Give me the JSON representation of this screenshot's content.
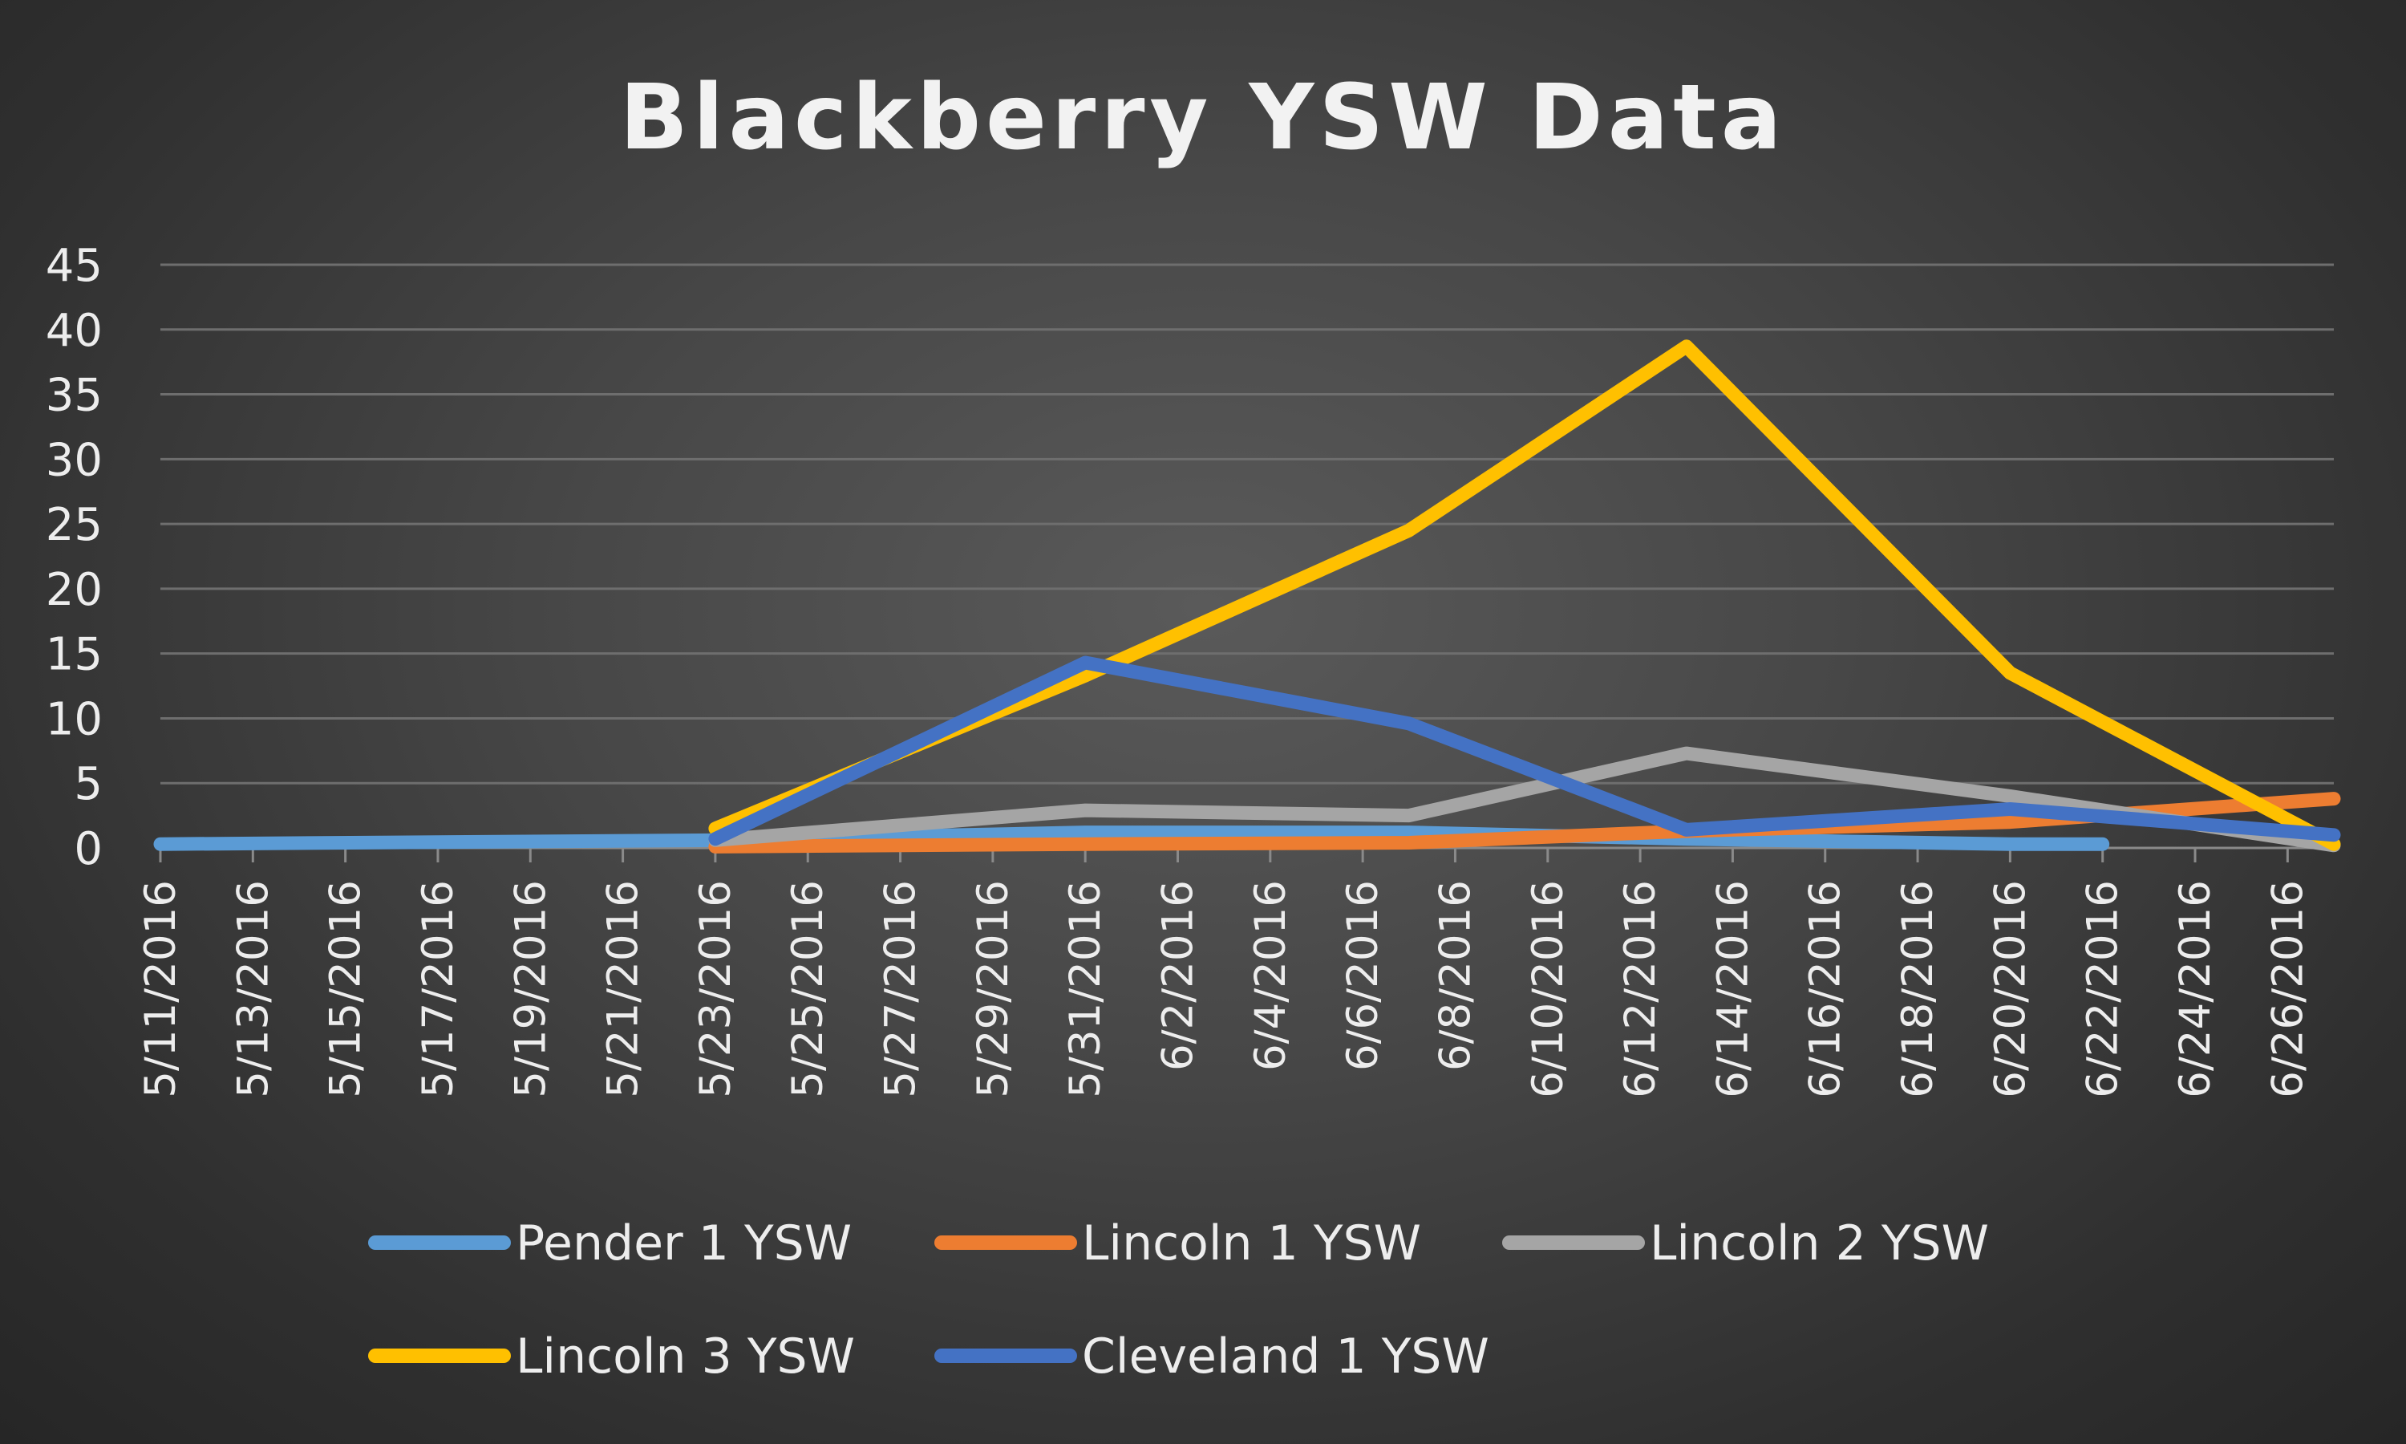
{
  "chart_data": {
    "type": "line",
    "title": "Blackberry YSW Data",
    "xlabel": "",
    "ylabel": "",
    "x_tick_labels": [
      "5/11/2016",
      "5/13/2016",
      "5/15/2016",
      "5/17/2016",
      "5/19/2016",
      "5/21/2016",
      "5/23/2016",
      "5/25/2016",
      "5/27/2016",
      "5/29/2016",
      "5/31/2016",
      "6/2/2016",
      "6/4/2016",
      "6/6/2016",
      "6/8/2016",
      "6/10/2016",
      "6/12/2016",
      "6/14/2016",
      "6/16/2016",
      "6/18/2016",
      "6/20/2016",
      "6/22/2016",
      "6/24/2016",
      "6/26/2016"
    ],
    "x_range": [
      "5/11/2016",
      "6/27/2016"
    ],
    "y_ticks": [
      "0",
      "5",
      "10",
      "15",
      "20",
      "25",
      "30",
      "35",
      "40",
      "45"
    ],
    "ylim": [
      0,
      45
    ],
    "grid": "horizontal",
    "legend_position": "bottom",
    "series": [
      {
        "name": "Pender 1 YSW",
        "color": "#5b9bd5",
        "points": [
          [
            "5/11/2016",
            0.3
          ],
          [
            "5/23/2016",
            0.6
          ],
          [
            "5/31/2016",
            1.2
          ],
          [
            "6/7/2016",
            1.2
          ],
          [
            "6/13/2016",
            0.7
          ],
          [
            "6/20/2016",
            0.3
          ],
          [
            "6/22/2016",
            0.3
          ]
        ]
      },
      {
        "name": "Lincoln 1 YSW",
        "color": "#ed7d31",
        "points": [
          [
            "5/23/2016",
            0.1
          ],
          [
            "5/31/2016",
            0.3
          ],
          [
            "6/7/2016",
            0.4
          ],
          [
            "6/13/2016",
            1.3
          ],
          [
            "6/20/2016",
            2
          ],
          [
            "6/27/2016",
            3.8
          ]
        ]
      },
      {
        "name": "Lincoln 2 YSW",
        "color": "#a5a5a5",
        "points": [
          [
            "5/23/2016",
            0.6
          ],
          [
            "5/31/2016",
            2.9
          ],
          [
            "6/7/2016",
            2.5
          ],
          [
            "6/13/2016",
            7.3
          ],
          [
            "6/20/2016",
            4
          ],
          [
            "6/27/2016",
            0.2
          ]
        ]
      },
      {
        "name": "Lincoln 3 YSW",
        "color": "#ffc000",
        "points": [
          [
            "5/23/2016",
            1.5
          ],
          [
            "5/31/2016",
            13.3
          ],
          [
            "6/7/2016",
            24.5
          ],
          [
            "6/13/2016",
            38.7
          ],
          [
            "6/20/2016",
            13.5
          ],
          [
            "6/27/2016",
            0.3
          ]
        ]
      },
      {
        "name": "Cleveland 1 YSW",
        "color": "#4472c4",
        "points": [
          [
            "5/23/2016",
            0.7
          ],
          [
            "5/31/2016",
            14.3
          ],
          [
            "6/7/2016",
            9.6
          ],
          [
            "6/13/2016",
            1.4
          ],
          [
            "6/20/2016",
            3
          ],
          [
            "6/27/2016",
            1
          ]
        ]
      }
    ]
  }
}
